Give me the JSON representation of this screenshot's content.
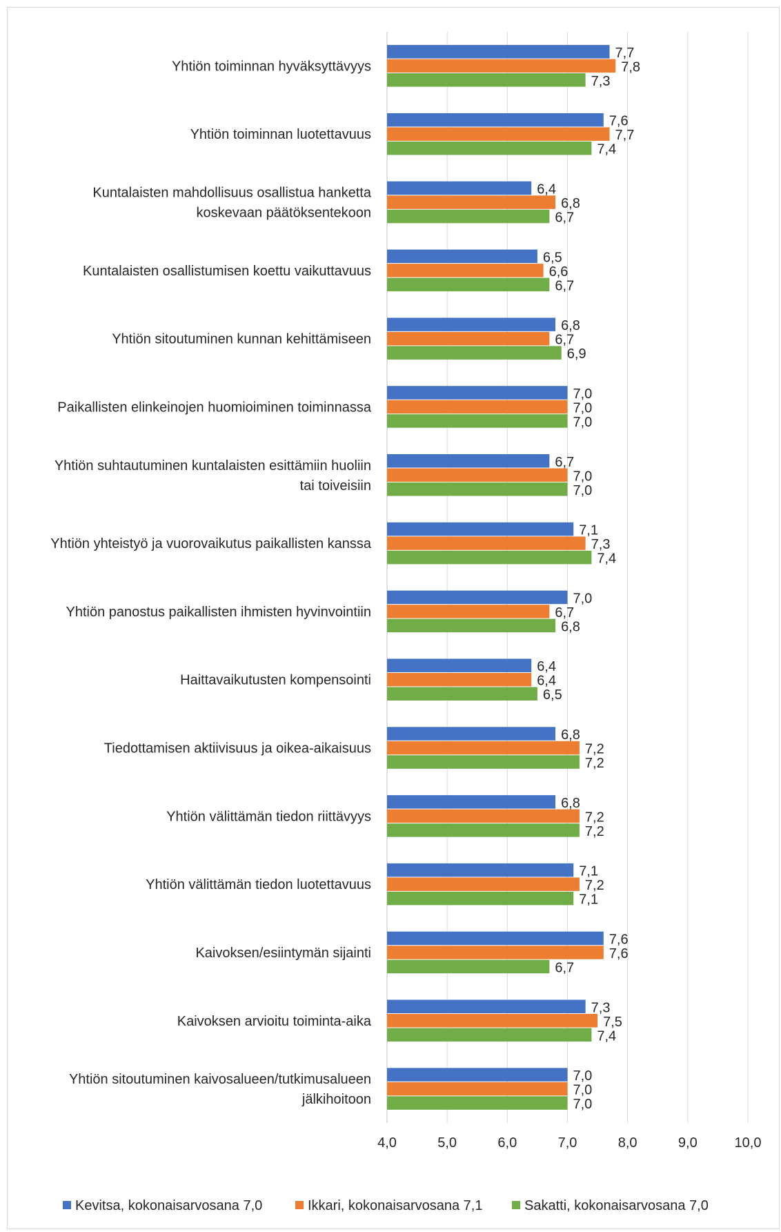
{
  "chart_data": {
    "type": "bar",
    "orientation": "horizontal",
    "categories": [
      [
        "Yhtiön toiminnan hyväksyttävyys"
      ],
      [
        "Yhtiön toiminnan luotettavuus"
      ],
      [
        "Kuntalaisten mahdollisuus osallistua hanketta",
        "koskevaan päätöksentekoon"
      ],
      [
        "Kuntalaisten osallistumisen koettu vaikuttavuus"
      ],
      [
        "Yhtiön sitoutuminen kunnan kehittämiseen"
      ],
      [
        "Paikallisten elinkeinojen huomioiminen toiminnassa"
      ],
      [
        "Yhtiön suhtautuminen kuntalaisten esittämiin huoliin",
        "tai toiveisiin"
      ],
      [
        "Yhtiön yhteistyö ja vuorovaikutus paikallisten kanssa"
      ],
      [
        "Yhtiön panostus paikallisten ihmisten hyvinvointiin"
      ],
      [
        "Haittavaikutusten kompensointi"
      ],
      [
        "Tiedottamisen aktiivisuus ja oikea-aikaisuus"
      ],
      [
        "Yhtiön välittämän tiedon riittävyys"
      ],
      [
        "Yhtiön välittämän tiedon luotettavuus"
      ],
      [
        "Kaivoksen/esiintymän sijainti"
      ],
      [
        "Kaivoksen arvioitu toiminta-aika"
      ],
      [
        "Yhtiön sitoutuminen kaivosalueen/tutkimusalueen",
        "jälkihoitoon"
      ]
    ],
    "series": [
      {
        "name": "Kevitsa, kokonaisarvosana 7,0",
        "color": "#4472c4",
        "values": [
          7.7,
          7.6,
          6.4,
          6.5,
          6.8,
          7.0,
          6.7,
          7.1,
          7.0,
          6.4,
          6.8,
          6.8,
          7.1,
          7.6,
          7.3,
          7.0
        ],
        "labels": [
          "7,7",
          "7,6",
          "6,4",
          "6,5",
          "6,8",
          "7,0",
          "6,7",
          "7,1",
          "7,0",
          "6,4",
          "6,8",
          "6,8",
          "7,1",
          "7,6",
          "7,3",
          "7,0"
        ]
      },
      {
        "name": "Ikkari, kokonaisarvosana 7,1",
        "color": "#ed7d31",
        "values": [
          7.8,
          7.7,
          6.8,
          6.6,
          6.7,
          7.0,
          7.0,
          7.3,
          6.7,
          6.4,
          7.2,
          7.2,
          7.2,
          7.6,
          7.5,
          7.0
        ],
        "labels": [
          "7,8",
          "7,7",
          "6,8",
          "6,6",
          "6,7",
          "7,0",
          "7,0",
          "7,3",
          "6,7",
          "6,4",
          "7,2",
          "7,2",
          "7,2",
          "7,6",
          "7,5",
          "7,0"
        ]
      },
      {
        "name": "Sakatti, kokonaisarvosana 7,0",
        "color": "#70ad47",
        "values": [
          7.3,
          7.4,
          6.7,
          6.7,
          6.9,
          7.0,
          7.0,
          7.4,
          6.8,
          6.5,
          7.2,
          7.2,
          7.1,
          6.7,
          7.4,
          7.0
        ],
        "labels": [
          "7,3",
          "7,4",
          "6,7",
          "6,7",
          "6,9",
          "7,0",
          "7,0",
          "7,4",
          "6,8",
          "6,5",
          "7,2",
          "7,2",
          "7,1",
          "6,7",
          "7,4",
          "7,0"
        ]
      }
    ],
    "xlim": [
      4.0,
      10.0
    ],
    "xticks": [
      4.0,
      5.0,
      6.0,
      7.0,
      8.0,
      9.0,
      10.0
    ],
    "xtick_labels": [
      "4,0",
      "5,0",
      "6,0",
      "7,0",
      "8,0",
      "9,0",
      "10,0"
    ],
    "grid": "vertical",
    "legend": "bottom",
    "title": "",
    "xlabel": "",
    "ylabel": ""
  }
}
